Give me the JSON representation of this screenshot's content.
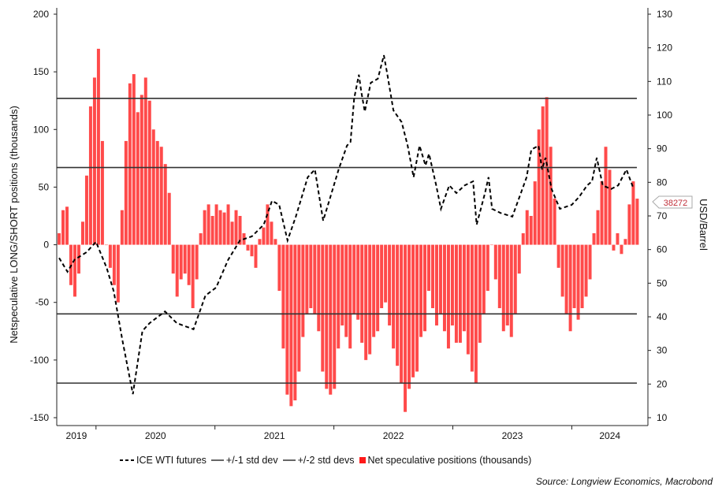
{
  "chart_data": {
    "type": "bar+line",
    "title": "",
    "ylabel_left": "Netspeculative LONG/SHORT positions (thousands)",
    "ylabel_right": "USD/Barrel",
    "ylim_left": [
      -150,
      200
    ],
    "ylim_right": [
      10,
      130
    ],
    "yticks_left": [
      200,
      150,
      100,
      50,
      0,
      -50,
      -100,
      -150
    ],
    "yticks_right": [
      130,
      120,
      110,
      100,
      90,
      80,
      70,
      60,
      50,
      40,
      30,
      20,
      10
    ],
    "xlim": [
      2019.67,
      2024.64
    ],
    "xtick_boundaries": [
      2020,
      2021,
      2022,
      2023,
      2024
    ],
    "xtick_labels": [
      "2019",
      "2020",
      "2021",
      "2022",
      "2023",
      "2024"
    ],
    "grid": false,
    "legend_position": "bottom",
    "legend": [
      "ICE WTI futures",
      "+/-1 std dev",
      "+/-2 std devs",
      "Net speculative positions (thousands)"
    ],
    "latest_value_label": "38272",
    "source": "Source: Longview Economics, Macrobond",
    "colors": {
      "bars": "#ff4a4a",
      "line": "#000000",
      "std": "#333333",
      "callout_text": "#c0303a"
    },
    "std_lines": {
      "plus_2": 127,
      "plus_1": 67,
      "minus_1": -60,
      "minus_2": -120
    },
    "bars": {
      "name": "Net speculative positions (thousands)",
      "x_start": 2019.69,
      "x_end": 2024.55,
      "values": [
        10,
        30,
        33,
        -35,
        -45,
        -25,
        20,
        60,
        120,
        145,
        170,
        90,
        0,
        -20,
        -35,
        -50,
        30,
        90,
        140,
        148,
        115,
        130,
        145,
        125,
        100,
        90,
        85,
        70,
        45,
        -25,
        -45,
        -30,
        -25,
        -35,
        -55,
        -30,
        10,
        30,
        35,
        25,
        35,
        30,
        28,
        35,
        20,
        30,
        25,
        10,
        -5,
        -10,
        -20,
        5,
        15,
        35,
        20,
        5,
        -40,
        -90,
        -130,
        -140,
        -135,
        -110,
        -80,
        -60,
        -55,
        -60,
        -75,
        -110,
        -125,
        -130,
        -125,
        -90,
        -70,
        -80,
        -90,
        -60,
        -65,
        -85,
        -100,
        -95,
        -80,
        -75,
        -55,
        -50,
        -70,
        -90,
        -105,
        -120,
        -145,
        -125,
        -115,
        -110,
        -80,
        -75,
        -40,
        -55,
        -70,
        -60,
        -75,
        -90,
        -70,
        -85,
        -85,
        -75,
        -95,
        -110,
        -120,
        -85,
        -60,
        -40,
        0,
        -30,
        -55,
        -75,
        -70,
        -80,
        -60,
        -25,
        10,
        30,
        25,
        55,
        100,
        120,
        128,
        85,
        40,
        -20,
        -45,
        -60,
        -75,
        -55,
        -65,
        -55,
        -45,
        -30,
        10,
        30,
        55,
        85,
        65,
        -5,
        10,
        -8,
        5,
        35,
        55,
        40
      ]
    },
    "line": {
      "name": "ICE WTI futures",
      "x": [
        2019.69,
        2019.76,
        2019.82,
        2019.92,
        2020.0,
        2020.09,
        2020.15,
        2020.22,
        2020.31,
        2020.39,
        2020.45,
        2020.58,
        2020.68,
        2020.82,
        2020.92,
        2021.01,
        2021.11,
        2021.21,
        2021.31,
        2021.41,
        2021.48,
        2021.54,
        2021.61,
        2021.68,
        2021.78,
        2021.84,
        2021.91,
        2021.97,
        2022.04,
        2022.11,
        2022.14,
        2022.17,
        2022.21,
        2022.23,
        2022.26,
        2022.31,
        2022.37,
        2022.42,
        2022.45,
        2022.5,
        2022.57,
        2022.62,
        2022.67,
        2022.72,
        2022.77,
        2022.8,
        2022.86,
        2022.9,
        2022.97,
        2023.03,
        2023.1,
        2023.17,
        2023.2,
        2023.27,
        2023.3,
        2023.33,
        2023.4,
        2023.5,
        2023.56,
        2023.62,
        2023.66,
        2023.72,
        2023.75,
        2023.78,
        2023.83,
        2023.9,
        2024.0,
        2024.06,
        2024.13,
        2024.17,
        2024.21,
        2024.26,
        2024.33,
        2024.39,
        2024.46,
        2024.52
      ],
      "y": [
        57.5,
        53.4,
        57,
        59.2,
        62.3,
        54.5,
        47.5,
        33.4,
        17,
        35.8,
        38.1,
        41.6,
        38.1,
        36.3,
        46.3,
        48.7,
        56.9,
        62.7,
        63.9,
        67.4,
        74.5,
        73.3,
        62.7,
        69.8,
        81.5,
        83.8,
        68.6,
        75.6,
        83.8,
        90.9,
        92,
        104.9,
        112,
        107,
        101,
        109.6,
        110.8,
        117.8,
        112,
        101.4,
        97.9,
        90.9,
        81.5,
        90.9,
        85,
        88.5,
        79.1,
        72.1,
        79.1,
        76.8,
        79.1,
        80.3,
        67.4,
        76.8,
        81.5,
        72.1,
        70.9,
        69.8,
        75.6,
        81.5,
        89.7,
        90.9,
        83.8,
        87.3,
        78,
        72.1,
        73.3,
        75.6,
        79.1,
        80.3,
        87.3,
        79.1,
        78,
        79.1,
        83.8,
        78
      ]
    }
  }
}
